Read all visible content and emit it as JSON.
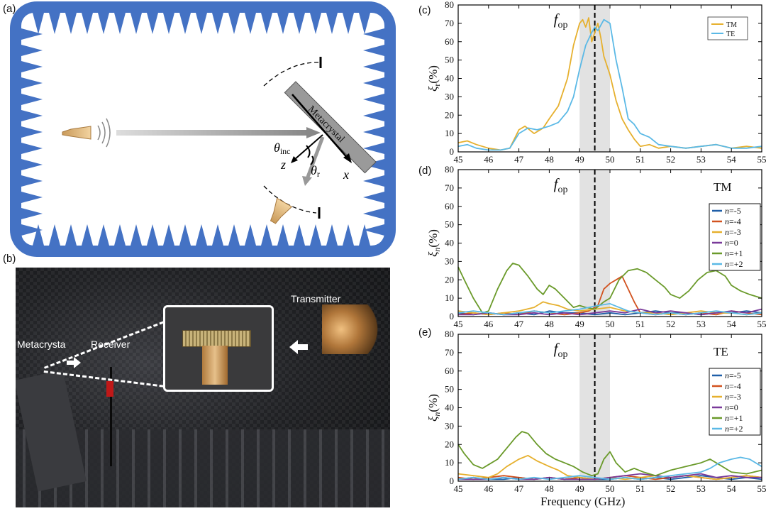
{
  "panel_labels": {
    "a": "(a)",
    "b": "(b)",
    "c": "(c)",
    "d": "(d)",
    "e": "(e)"
  },
  "schematic": {
    "metacrystal_label": "Metacrystal",
    "theta_inc": "θ",
    "theta_inc_sub": "inc",
    "theta_r": "θ",
    "theta_r_sub": "r",
    "axis_z": "z",
    "axis_x": "x",
    "chamber_color": "#4472C4"
  },
  "photo": {
    "metacrystal_label": "Metacrysta",
    "receiver_label": "Receiver",
    "transmitter_label": "Transmitter"
  },
  "frequency_label": "Frequency (GHz)",
  "chart_data": [
    {
      "id": "c",
      "type": "line",
      "ylabel_main": "ξ",
      "ylabel_sub": "r",
      "ylabel_unit": "(%)",
      "annotation": {
        "text": "f",
        "sub": "op"
      },
      "xlim": [
        45,
        55
      ],
      "ylim": [
        0,
        80
      ],
      "xticks": [
        45,
        46,
        47,
        48,
        49,
        50,
        51,
        52,
        53,
        54,
        55
      ],
      "yticks": [
        0,
        10,
        20,
        30,
        40,
        50,
        60,
        70,
        80
      ],
      "band": [
        49.0,
        50.0
      ],
      "fop": 49.5,
      "legend": {
        "position": "top-right"
      },
      "series": [
        {
          "name": "TM",
          "color": "#E6B02E",
          "x": [
            45,
            45.3,
            45.6,
            46,
            46.4,
            46.7,
            47,
            47.2,
            47.5,
            47.8,
            48,
            48.3,
            48.6,
            48.8,
            49,
            49.1,
            49.2,
            49.3,
            49.4,
            49.5,
            49.6,
            49.7,
            49.8,
            50,
            50.2,
            50.4,
            50.6,
            50.8,
            51,
            51.3,
            51.6,
            52,
            52.5,
            53,
            53.5,
            54,
            54.5,
            55
          ],
          "y": [
            5,
            6,
            4,
            2,
            1,
            2,
            12,
            14,
            10,
            13,
            18,
            25,
            40,
            58,
            70,
            72,
            68,
            73,
            60,
            65,
            70,
            62,
            52,
            42,
            28,
            18,
            12,
            7,
            3,
            4,
            2,
            3,
            2,
            3,
            4,
            2,
            3,
            2
          ]
        },
        {
          "name": "TE",
          "color": "#5BB9E6",
          "x": [
            45,
            45.3,
            45.6,
            46,
            46.4,
            46.7,
            47,
            47.3,
            47.6,
            48,
            48.3,
            48.6,
            48.8,
            49,
            49.2,
            49.4,
            49.5,
            49.6,
            49.8,
            50,
            50.2,
            50.4,
            50.6,
            50.8,
            51,
            51.3,
            51.6,
            52,
            52.5,
            53,
            53.5,
            54,
            54.5,
            55
          ],
          "y": [
            3,
            4,
            2,
            1,
            1,
            2,
            10,
            13,
            12,
            14,
            16,
            22,
            30,
            45,
            58,
            65,
            68,
            66,
            72,
            70,
            50,
            35,
            18,
            15,
            10,
            8,
            4,
            3,
            2,
            3,
            4,
            2,
            2,
            3
          ]
        }
      ]
    },
    {
      "id": "d",
      "type": "line",
      "ylabel_main": "ξ",
      "ylabel_sub": "n",
      "ylabel_unit": "(%)",
      "annotation": {
        "text": "f",
        "sub": "op"
      },
      "pol_label": "TM",
      "xlim": [
        45,
        55
      ],
      "ylim": [
        0,
        80
      ],
      "xticks": [
        45,
        46,
        47,
        48,
        49,
        50,
        51,
        52,
        53,
        54,
        55
      ],
      "yticks": [
        0,
        10,
        20,
        30,
        40,
        50,
        60,
        70,
        80
      ],
      "band": [
        49.0,
        50.0
      ],
      "fop": 49.5,
      "legend": {
        "position": "top-right"
      },
      "series": [
        {
          "name": "-5",
          "color": "#1F5FA8",
          "x": [
            45,
            45.5,
            46,
            46.5,
            47,
            47.5,
            48,
            48.5,
            49,
            49.5,
            50,
            50.5,
            51,
            51.5,
            52,
            52.5,
            53,
            53.5,
            54,
            54.5,
            55
          ],
          "y": [
            2,
            1,
            2,
            1,
            2,
            1,
            3,
            2,
            2,
            1,
            2,
            1,
            2,
            3,
            2,
            2,
            1,
            2,
            2,
            3,
            2
          ]
        },
        {
          "name": "-4",
          "color": "#D2521F",
          "x": [
            45,
            45.5,
            46,
            46.5,
            47,
            47.5,
            48,
            48.5,
            49,
            49.3,
            49.6,
            49.8,
            50,
            50.2,
            50.4,
            50.6,
            50.8,
            51,
            51.5,
            52,
            52.5,
            53,
            53.5,
            54,
            54.5,
            55
          ],
          "y": [
            1,
            2,
            1,
            2,
            1,
            3,
            2,
            1,
            2,
            3,
            6,
            15,
            18,
            20,
            22,
            15,
            8,
            2,
            1,
            2,
            1,
            2,
            1,
            3,
            2,
            1
          ]
        },
        {
          "name": "-3",
          "color": "#E6B02E",
          "x": [
            45,
            45.5,
            46,
            46.5,
            47,
            47.5,
            47.8,
            48,
            48.3,
            48.6,
            49,
            49.5,
            50,
            50.5,
            51,
            51.5,
            52,
            52.5,
            53,
            53.5,
            54,
            54.5,
            55
          ],
          "y": [
            3,
            2,
            1,
            2,
            3,
            5,
            8,
            7,
            6,
            4,
            3,
            4,
            5,
            3,
            2,
            2,
            1,
            2,
            3,
            2,
            2,
            1,
            2
          ]
        },
        {
          "name": "0",
          "color": "#7A3A9A",
          "x": [
            45,
            45.5,
            46,
            46.5,
            47,
            47.5,
            48,
            48.5,
            49,
            49.5,
            50,
            50.5,
            51,
            51.5,
            52,
            52.5,
            53,
            53.5,
            54,
            54.5,
            55
          ],
          "y": [
            1,
            1,
            2,
            1,
            1,
            2,
            1,
            2,
            1,
            2,
            3,
            2,
            4,
            2,
            3,
            2,
            1,
            2,
            3,
            2,
            4
          ]
        },
        {
          "name": "+1",
          "color": "#6A9A2A",
          "x": [
            45,
            45.2,
            45.5,
            45.8,
            46,
            46.3,
            46.6,
            46.8,
            47,
            47.3,
            47.6,
            47.8,
            48,
            48.2,
            48.5,
            48.8,
            49,
            49.2,
            49.5,
            49.8,
            50,
            50.3,
            50.6,
            50.9,
            51.2,
            51.5,
            51.8,
            52,
            52.3,
            52.6,
            52.9,
            53.2,
            53.5,
            53.8,
            54,
            54.3,
            54.6,
            55
          ],
          "y": [
            27,
            20,
            10,
            2,
            3,
            15,
            25,
            29,
            28,
            22,
            15,
            12,
            17,
            15,
            10,
            5,
            6,
            5,
            4,
            8,
            10,
            20,
            25,
            26,
            24,
            20,
            16,
            12,
            10,
            14,
            20,
            24,
            25,
            22,
            17,
            14,
            12,
            10
          ]
        },
        {
          "name": "+2",
          "color": "#5BB9E6",
          "x": [
            45,
            45.5,
            46,
            46.5,
            47,
            47.5,
            48,
            48.5,
            49,
            49.3,
            49.6,
            50,
            50.3,
            50.6,
            51,
            51.5,
            52,
            52.5,
            53,
            53.5,
            54,
            54.5,
            55
          ],
          "y": [
            2,
            3,
            2,
            1,
            2,
            3,
            2,
            3,
            4,
            5,
            6,
            7,
            5,
            3,
            2,
            1,
            2,
            1,
            2,
            3,
            2,
            1,
            2
          ]
        }
      ]
    },
    {
      "id": "e",
      "type": "line",
      "ylabel_main": "ξ",
      "ylabel_sub": "n",
      "ylabel_unit": "(%)",
      "annotation": {
        "text": "f",
        "sub": "op"
      },
      "pol_label": "TE",
      "xlim": [
        45,
        55
      ],
      "ylim": [
        0,
        80
      ],
      "xticks": [
        45,
        46,
        47,
        48,
        49,
        50,
        51,
        52,
        53,
        54,
        55
      ],
      "yticks": [
        0,
        10,
        20,
        30,
        40,
        50,
        60,
        70,
        80
      ],
      "band": [
        49.0,
        50.0
      ],
      "fop": 49.5,
      "legend": {
        "position": "top-right"
      },
      "series": [
        {
          "name": "-5",
          "color": "#1F5FA8",
          "x": [
            45,
            45.5,
            46,
            46.5,
            47,
            47.5,
            48,
            48.5,
            49,
            49.5,
            50,
            50.5,
            51,
            51.5,
            52,
            52.5,
            53,
            53.5,
            54,
            54.5,
            55
          ],
          "y": [
            1,
            2,
            1,
            1,
            2,
            1,
            2,
            1,
            2,
            1,
            1,
            2,
            1,
            2,
            1,
            2,
            3,
            2,
            1,
            2,
            1
          ]
        },
        {
          "name": "-4",
          "color": "#D2521F",
          "x": [
            45,
            45.5,
            46,
            46.5,
            47,
            47.5,
            48,
            48.5,
            49,
            49.5,
            50,
            50.5,
            51,
            51.5,
            52,
            52.5,
            53,
            53.5,
            54,
            54.5,
            55
          ],
          "y": [
            2,
            1,
            2,
            3,
            2,
            1,
            2,
            1,
            2,
            1,
            2,
            3,
            2,
            1,
            2,
            3,
            2,
            1,
            2,
            3,
            2
          ]
        },
        {
          "name": "-3",
          "color": "#E6B02E",
          "x": [
            45,
            45.5,
            46,
            46.3,
            46.6,
            47,
            47.3,
            47.6,
            48,
            48.3,
            48.6,
            49,
            49.5,
            50,
            50.5,
            51,
            51.5,
            52,
            52.5,
            53,
            53.5,
            54,
            54.5,
            55
          ],
          "y": [
            4,
            3,
            2,
            4,
            8,
            12,
            14,
            11,
            8,
            6,
            3,
            2,
            1,
            2,
            1,
            2,
            3,
            2,
            3,
            2,
            1,
            2,
            3,
            2
          ]
        },
        {
          "name": "0",
          "color": "#7A3A9A",
          "x": [
            45,
            45.5,
            46,
            46.5,
            47,
            47.5,
            48,
            48.5,
            49,
            49.5,
            50,
            50.5,
            51,
            51.5,
            52,
            52.5,
            53,
            53.5,
            54,
            54.5,
            55
          ],
          "y": [
            1,
            1,
            1,
            2,
            1,
            1,
            2,
            1,
            1,
            1,
            2,
            3,
            4,
            3,
            2,
            3,
            4,
            2,
            3,
            2,
            2
          ]
        },
        {
          "name": "+1",
          "color": "#6A9A2A",
          "x": [
            45,
            45.2,
            45.5,
            45.8,
            46,
            46.3,
            46.6,
            46.9,
            47.1,
            47.3,
            47.6,
            47.9,
            48.2,
            48.5,
            48.8,
            49.1,
            49.4,
            49.6,
            49.8,
            50,
            50.2,
            50.5,
            50.8,
            51.1,
            51.5,
            52,
            52.5,
            53,
            53.3,
            53.6,
            54,
            54.5,
            55
          ],
          "y": [
            20,
            15,
            9,
            7,
            9,
            12,
            18,
            24,
            27,
            26,
            20,
            15,
            12,
            10,
            8,
            5,
            3,
            4,
            12,
            16,
            10,
            5,
            7,
            5,
            3,
            6,
            8,
            10,
            12,
            9,
            5,
            4,
            6
          ]
        },
        {
          "name": "+2",
          "color": "#5BB9E6",
          "x": [
            45,
            45.5,
            46,
            46.5,
            47,
            47.5,
            48,
            48.5,
            49,
            49.5,
            50,
            50.5,
            51,
            51.5,
            52,
            52.5,
            53,
            53.3,
            53.6,
            54,
            54.3,
            54.6,
            55
          ],
          "y": [
            1,
            2,
            1,
            2,
            1,
            2,
            1,
            2,
            3,
            2,
            1,
            2,
            1,
            2,
            3,
            4,
            5,
            7,
            10,
            12,
            13,
            12,
            8
          ]
        }
      ]
    }
  ]
}
